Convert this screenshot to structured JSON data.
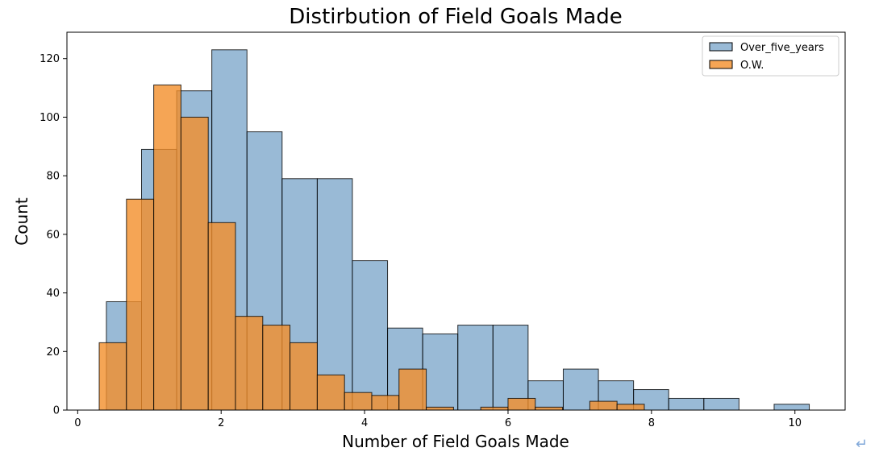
{
  "chart_data": {
    "type": "bar",
    "title": "Distirbution of Field Goals Made",
    "xlabel": "Number of Field Goals Made",
    "ylabel": "Count",
    "xlim": [
      -0.15,
      10.7
    ],
    "ylim": [
      0,
      129
    ],
    "xticks": [
      0,
      2,
      4,
      6,
      8,
      10
    ],
    "yticks": [
      0,
      20,
      40,
      60,
      80,
      100,
      120
    ],
    "grid": false,
    "legend_position": "top-right",
    "series": [
      {
        "name": "Over_five_years",
        "color": "#4682b4",
        "bins": [
          {
            "x0": 0.4,
            "x1": 0.89,
            "count": 37
          },
          {
            "x0": 0.89,
            "x1": 1.38,
            "count": 89
          },
          {
            "x0": 1.38,
            "x1": 1.87,
            "count": 109
          },
          {
            "x0": 1.87,
            "x1": 2.36,
            "count": 123
          },
          {
            "x0": 2.36,
            "x1": 2.85,
            "count": 95
          },
          {
            "x0": 2.85,
            "x1": 3.34,
            "count": 79
          },
          {
            "x0": 3.34,
            "x1": 3.83,
            "count": 79
          },
          {
            "x0": 3.83,
            "x1": 4.32,
            "count": 51
          },
          {
            "x0": 4.32,
            "x1": 4.81,
            "count": 28
          },
          {
            "x0": 4.81,
            "x1": 5.3,
            "count": 26
          },
          {
            "x0": 5.3,
            "x1": 5.79,
            "count": 29
          },
          {
            "x0": 5.79,
            "x1": 6.28,
            "count": 29
          },
          {
            "x0": 6.28,
            "x1": 6.77,
            "count": 10
          },
          {
            "x0": 6.77,
            "x1": 7.26,
            "count": 14
          },
          {
            "x0": 7.26,
            "x1": 7.75,
            "count": 10
          },
          {
            "x0": 7.75,
            "x1": 8.24,
            "count": 7
          },
          {
            "x0": 8.24,
            "x1": 8.73,
            "count": 4
          },
          {
            "x0": 8.73,
            "x1": 9.22,
            "count": 4
          },
          {
            "x0": 9.22,
            "x1": 9.71,
            "count": 0
          },
          {
            "x0": 9.71,
            "x1": 10.2,
            "count": 2
          }
        ]
      },
      {
        "name": "O.W.",
        "color": "#f28e2b",
        "bins": [
          {
            "x0": 0.3,
            "x1": 0.68,
            "count": 23
          },
          {
            "x0": 0.68,
            "x1": 1.06,
            "count": 72
          },
          {
            "x0": 1.06,
            "x1": 1.44,
            "count": 111
          },
          {
            "x0": 1.44,
            "x1": 1.82,
            "count": 100
          },
          {
            "x0": 1.82,
            "x1": 2.2,
            "count": 64
          },
          {
            "x0": 2.2,
            "x1": 2.58,
            "count": 32
          },
          {
            "x0": 2.58,
            "x1": 2.96,
            "count": 29
          },
          {
            "x0": 2.96,
            "x1": 3.34,
            "count": 23
          },
          {
            "x0": 3.34,
            "x1": 3.72,
            "count": 12
          },
          {
            "x0": 3.72,
            "x1": 4.1,
            "count": 6
          },
          {
            "x0": 4.1,
            "x1": 4.48,
            "count": 5
          },
          {
            "x0": 4.48,
            "x1": 4.86,
            "count": 14
          },
          {
            "x0": 4.86,
            "x1": 5.24,
            "count": 1
          },
          {
            "x0": 5.24,
            "x1": 5.62,
            "count": 0
          },
          {
            "x0": 5.62,
            "x1": 6.0,
            "count": 1
          },
          {
            "x0": 6.0,
            "x1": 6.38,
            "count": 4
          },
          {
            "x0": 6.38,
            "x1": 6.76,
            "count": 1
          },
          {
            "x0": 6.76,
            "x1": 7.14,
            "count": 0
          },
          {
            "x0": 7.14,
            "x1": 7.52,
            "count": 3
          },
          {
            "x0": 7.52,
            "x1": 7.9,
            "count": 2
          }
        ]
      }
    ]
  },
  "decor": {
    "return_icon": "↵"
  }
}
